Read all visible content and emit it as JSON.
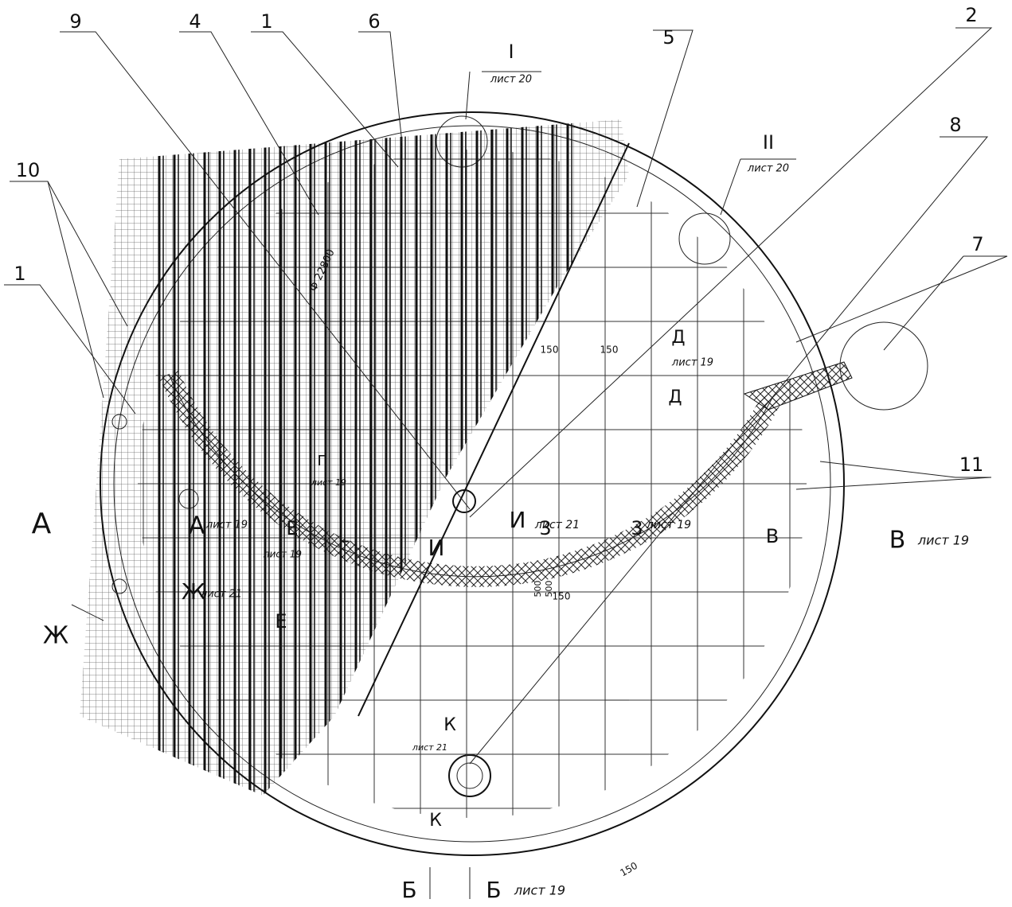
{
  "callouts": [
    "9",
    "4",
    "1",
    "6",
    "5",
    "2",
    "8",
    "7",
    "10",
    "1",
    "11"
  ],
  "details": [
    {
      "numeral": "I",
      "sheet": "лист 20"
    },
    {
      "numeral": "II",
      "sheet": "лист 20"
    }
  ],
  "diameter": "Ф 22800",
  "dimensions": [
    "150",
    "150",
    "500",
    "500",
    "150",
    "150"
  ],
  "labels": [
    "А",
    "А",
    "лист 19",
    "Ж",
    "Ж",
    "лист 21",
    "Е",
    "Е",
    "лист 19",
    "Г",
    "Г",
    "лист 19",
    "И",
    "И",
    "лист 21",
    "3",
    "3",
    "лист 19",
    "Д",
    "лист 19",
    "Д",
    "В",
    "В",
    "лист 19",
    "К",
    "лист 21",
    "К",
    "Б",
    "Б",
    "лист 19"
  ]
}
